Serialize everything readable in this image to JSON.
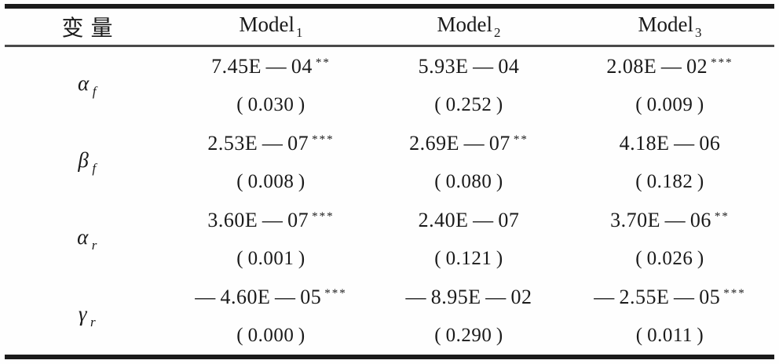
{
  "table": {
    "columns": {
      "variable": "变量",
      "models": [
        {
          "base": "Model",
          "sub": "1"
        },
        {
          "base": "Model",
          "sub": "2"
        },
        {
          "base": "Model",
          "sub": "3"
        }
      ]
    },
    "rows": [
      {
        "label": {
          "base": "α",
          "sub": "f"
        },
        "cells": [
          {
            "value": "7.45E — 04",
            "stars": "**",
            "p": "( 0.030 )"
          },
          {
            "value": "5.93E — 04",
            "stars": "",
            "p": "( 0.252 )"
          },
          {
            "value": "2.08E — 02",
            "stars": "***",
            "p": "( 0.009 )"
          }
        ]
      },
      {
        "label": {
          "base": "β",
          "sub": "f"
        },
        "cells": [
          {
            "value": "2.53E — 07",
            "stars": "***",
            "p": "( 0.008 )"
          },
          {
            "value": "2.69E — 07",
            "stars": "**",
            "p": "( 0.080 )"
          },
          {
            "value": "4.18E — 06",
            "stars": "",
            "p": "( 0.182 )"
          }
        ]
      },
      {
        "label": {
          "base": "α",
          "sub": "r"
        },
        "cells": [
          {
            "value": "3.60E — 07",
            "stars": "***",
            "p": "( 0.001 )"
          },
          {
            "value": "2.40E — 07",
            "stars": "",
            "p": "( 0.121 )"
          },
          {
            "value": "3.70E — 06",
            "stars": "**",
            "p": "( 0.026 )"
          }
        ]
      },
      {
        "label": {
          "base": "γ",
          "sub": "r"
        },
        "cells": [
          {
            "value": "— 4.60E — 05",
            "stars": "***",
            "p": "( 0.000 )"
          },
          {
            "value": "— 8.95E — 02",
            "stars": "",
            "p": "( 0.290 )"
          },
          {
            "value": "— 2.55E — 05",
            "stars": "***",
            "p": "( 0.011 )"
          }
        ]
      }
    ],
    "colors": {
      "text": "#1a1a1a",
      "rule_thick": "#1b1b1b",
      "rule_mid": "#4a4a4a",
      "background": "#fefefe"
    }
  }
}
